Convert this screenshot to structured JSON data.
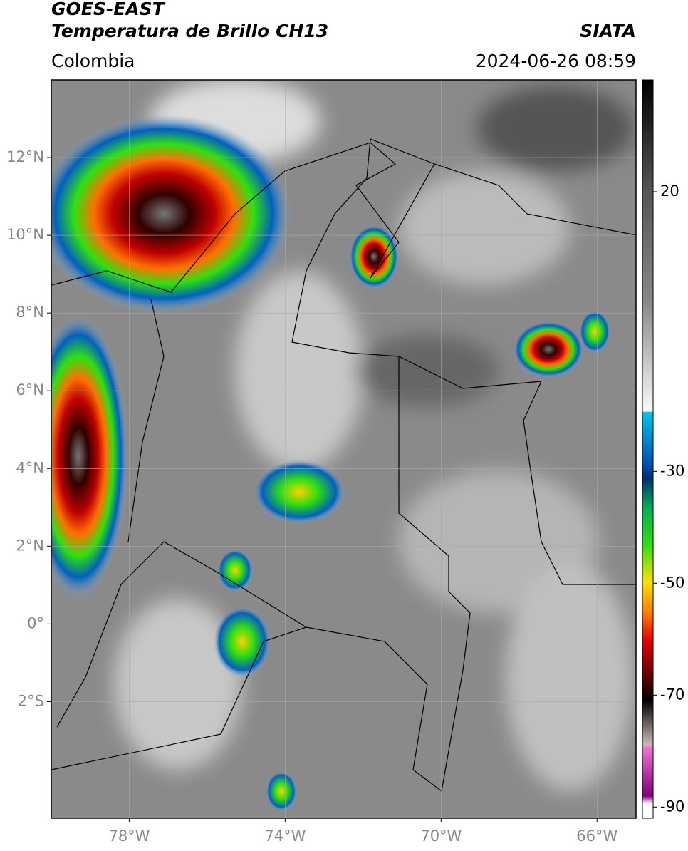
{
  "header": {
    "title": "GOES-EAST",
    "subtitle": "Temperatura de Brillo CH13",
    "region": "Colombia",
    "source": "SIATA",
    "timestamp": "2024-06-26 08:59"
  },
  "map": {
    "xlim": [
      -80,
      -65
    ],
    "ylim": [
      -5,
      14
    ],
    "xticks": [
      {
        "value": -78,
        "label": "78°W"
      },
      {
        "value": -74,
        "label": "74°W"
      },
      {
        "value": -70,
        "label": "70°W"
      },
      {
        "value": -66,
        "label": "66°W"
      }
    ],
    "yticks": [
      {
        "value": 12,
        "label": "12°N"
      },
      {
        "value": 10,
        "label": "10°N"
      },
      {
        "value": 8,
        "label": "8°N"
      },
      {
        "value": 6,
        "label": "6°N"
      },
      {
        "value": 4,
        "label": "4°N"
      },
      {
        "value": 2,
        "label": "2°N"
      },
      {
        "value": 0,
        "label": "0°"
      },
      {
        "value": -2,
        "label": "2°S"
      }
    ],
    "grid": true
  },
  "colorbar": {
    "lim": [
      -92,
      40
    ],
    "ticks": [
      20,
      -30,
      -50,
      -70,
      -90
    ]
  }
}
